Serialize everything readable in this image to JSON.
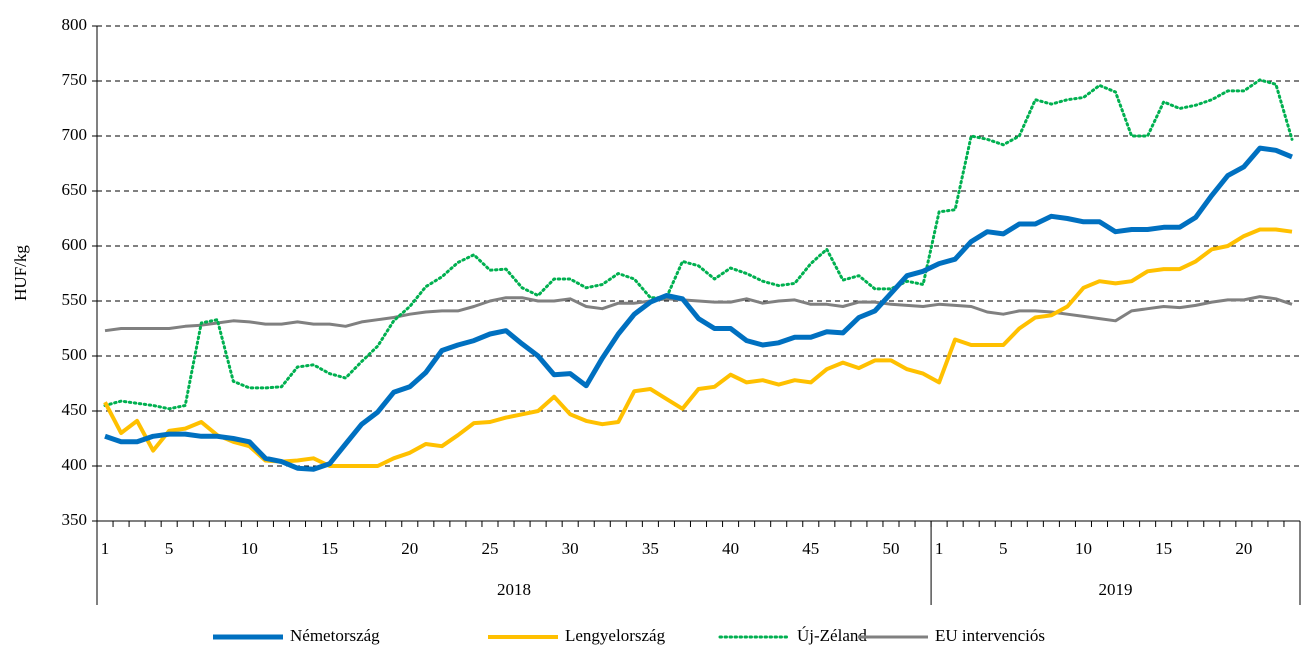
{
  "chart_data": {
    "type": "line",
    "y_label": "HUF/kg",
    "categories": [
      1,
      null,
      null,
      null,
      5,
      null,
      null,
      null,
      null,
      10,
      null,
      null,
      null,
      null,
      15,
      null,
      null,
      null,
      null,
      20,
      null,
      null,
      null,
      null,
      25,
      null,
      null,
      null,
      null,
      30,
      null,
      null,
      null,
      null,
      35,
      null,
      null,
      null,
      null,
      40,
      null,
      null,
      null,
      null,
      45,
      null,
      null,
      null,
      null,
      50,
      null,
      null,
      1,
      null,
      null,
      null,
      5,
      null,
      null,
      null,
      null,
      10,
      null,
      null,
      null,
      null,
      15,
      null,
      null,
      null,
      null,
      20,
      null,
      null,
      null
    ],
    "x_groups": [
      {
        "label": "2018",
        "span": 52
      },
      {
        "label": "2019",
        "span": 23
      }
    ],
    "ylim": [
      350,
      800
    ],
    "yticks": [
      350,
      400,
      450,
      500,
      550,
      600,
      650,
      700,
      750,
      800
    ],
    "grid": true,
    "legend": "bottom",
    "series": [
      {
        "name": "Németország",
        "color": "#0070c0",
        "style": "solid",
        "values": [
          427,
          422,
          422,
          427,
          429,
          429,
          427,
          427,
          425,
          422,
          407,
          404,
          398,
          397,
          402,
          420,
          438,
          449,
          467,
          472,
          485,
          505,
          510,
          514,
          520,
          523,
          511,
          500,
          483,
          484,
          473,
          498,
          520,
          538,
          549,
          555,
          552,
          534,
          525,
          525,
          514,
          510,
          512,
          517,
          517,
          522,
          521,
          535,
          541,
          557,
          573,
          577,
          584,
          588,
          604,
          613,
          611,
          620,
          620,
          627,
          625,
          622,
          622,
          613,
          615,
          615,
          617,
          617,
          626,
          646,
          664,
          672,
          689,
          687,
          681
        ]
      },
      {
        "name": "Lengyelország",
        "color": "#ffc000",
        "style": "solid",
        "values": [
          458,
          430,
          441,
          414,
          432,
          434,
          440,
          428,
          422,
          418,
          405,
          404,
          405,
          407,
          400,
          400,
          400,
          400,
          407,
          412,
          420,
          418,
          428,
          439,
          440,
          444,
          447,
          450,
          463,
          447,
          441,
          438,
          440,
          468,
          470,
          461,
          452,
          470,
          472,
          483,
          476,
          478,
          474,
          478,
          476,
          488,
          494,
          489,
          496,
          496,
          488,
          484,
          476,
          515,
          510,
          510,
          510,
          525,
          535,
          537,
          545,
          562,
          568,
          566,
          568,
          577,
          579,
          579,
          586,
          597,
          600,
          609,
          615,
          615,
          613
        ]
      },
      {
        "name": "Új-Zéland",
        "color": "#00b050",
        "style": "dotted",
        "values": [
          455,
          459,
          457,
          455,
          452,
          455,
          530,
          533,
          477,
          471,
          471,
          472,
          490,
          492,
          484,
          480,
          495,
          509,
          532,
          545,
          563,
          572,
          585,
          592,
          578,
          579,
          562,
          555,
          570,
          570,
          562,
          565,
          575,
          570,
          553,
          553,
          586,
          582,
          570,
          580,
          575,
          568,
          564,
          566,
          584,
          597,
          569,
          573,
          561,
          561,
          568,
          565,
          631,
          633,
          700,
          697,
          692,
          700,
          733,
          729,
          733,
          735,
          746,
          740,
          700,
          700,
          731,
          725,
          728,
          733,
          741,
          741,
          751,
          747,
          697
        ]
      },
      {
        "name": "EU intervenciós",
        "color": "#808080",
        "style": "solid",
        "values": [
          523,
          525,
          525,
          525,
          525,
          527,
          528,
          530,
          532,
          531,
          529,
          529,
          531,
          529,
          529,
          527,
          531,
          533,
          535,
          538,
          540,
          541,
          541,
          545,
          550,
          553,
          553,
          550,
          550,
          552,
          545,
          543,
          548,
          548,
          550,
          552,
          551,
          550,
          549,
          549,
          552,
          548,
          550,
          551,
          547,
          547,
          545,
          549,
          549,
          547,
          546,
          545,
          547,
          546,
          545,
          540,
          538,
          541,
          541,
          540,
          538,
          536,
          534,
          532,
          541,
          543,
          545,
          544,
          546,
          549,
          551,
          551,
          554,
          552,
          547
        ]
      }
    ]
  }
}
